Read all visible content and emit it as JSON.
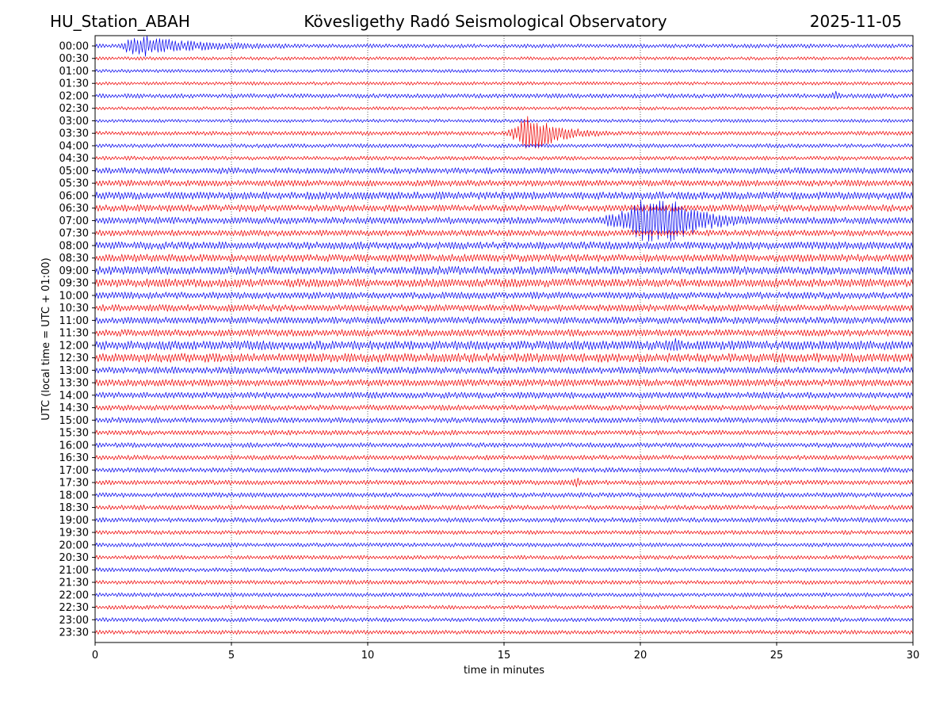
{
  "header": {
    "station": "HU_Station_ABAH",
    "observatory": "Kövesligethy Radó Seismological Observatory",
    "date": "2025-11-05"
  },
  "chart_data": {
    "type": "line",
    "title": "Kövesligethy Radó Seismological Observatory",
    "xlabel": "time in minutes",
    "ylabel": "UTC (local time = UTC + 01:00)",
    "xlim": [
      0,
      30
    ],
    "xticks": [
      "0",
      "5",
      "10",
      "15",
      "20",
      "25",
      "30"
    ],
    "xtick_values": [
      0,
      5,
      10,
      15,
      20,
      25,
      30
    ],
    "grid": "vertical dotted at each x tick",
    "row_labels": [
      "00:00",
      "00:30",
      "01:00",
      "01:30",
      "02:00",
      "02:30",
      "03:00",
      "03:30",
      "04:00",
      "04:30",
      "05:00",
      "05:30",
      "06:00",
      "06:30",
      "07:00",
      "07:30",
      "08:00",
      "08:30",
      "09:00",
      "09:30",
      "10:00",
      "10:30",
      "11:00",
      "11:30",
      "12:00",
      "12:30",
      "13:00",
      "13:30",
      "14:00",
      "14:30",
      "15:00",
      "15:30",
      "16:00",
      "16:30",
      "17:00",
      "17:30",
      "18:00",
      "18:30",
      "19:00",
      "19:30",
      "20:00",
      "20:30",
      "21:00",
      "21:30",
      "22:00",
      "22:30",
      "23:00",
      "23:30"
    ],
    "colors": [
      "#0000ee",
      "#ee0000"
    ],
    "series": [
      {
        "name": "trace-rows",
        "note": "alternating blue/red helicorder traces, one per 30-minute row"
      }
    ],
    "events": [
      {
        "row": "00:00",
        "start_min": 0.9,
        "peak_min": 1.5,
        "end_min": 7.0,
        "amplitude_rows": 0.9
      },
      {
        "row": "03:30",
        "start_min": 15.1,
        "peak_min": 16.0,
        "end_min": 18.8,
        "amplitude_rows": 1.6
      },
      {
        "row": "07:00",
        "start_min": 18.5,
        "peak_min": 20.8,
        "end_min": 24.5,
        "amplitude_rows": 2.1
      },
      {
        "row": "12:00",
        "start_min": 20.8,
        "peak_min": 21.3,
        "end_min": 21.7,
        "amplitude_rows": 0.35
      },
      {
        "row": "02:00",
        "start_min": 26.9,
        "peak_min": 27.2,
        "end_min": 27.5,
        "amplitude_rows": 0.3
      },
      {
        "row": "17:30",
        "start_min": 17.3,
        "peak_min": 17.7,
        "end_min": 18.0,
        "amplitude_rows": 0.25
      }
    ],
    "row_noise": [
      0.12,
      0.1,
      0.1,
      0.1,
      0.13,
      0.1,
      0.1,
      0.12,
      0.12,
      0.12,
      0.18,
      0.18,
      0.22,
      0.2,
      0.2,
      0.18,
      0.22,
      0.22,
      0.24,
      0.24,
      0.2,
      0.2,
      0.2,
      0.2,
      0.26,
      0.26,
      0.2,
      0.2,
      0.18,
      0.16,
      0.16,
      0.14,
      0.14,
      0.14,
      0.14,
      0.14,
      0.14,
      0.14,
      0.14,
      0.12,
      0.12,
      0.12,
      0.12,
      0.12,
      0.12,
      0.12,
      0.12,
      0.12
    ]
  }
}
